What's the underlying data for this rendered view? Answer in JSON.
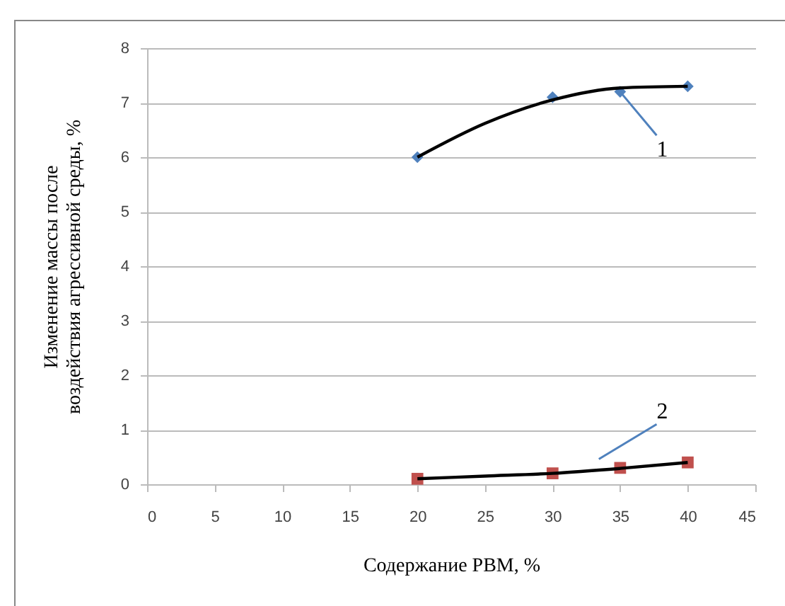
{
  "chart_data": {
    "type": "scatter",
    "xlabel": "Содержание PBM, %",
    "ylabel": "Изменение массы после воздействия агрессивной среды, %",
    "xlim": [
      0,
      45
    ],
    "xticks": [
      0,
      5,
      10,
      15,
      20,
      25,
      30,
      35,
      40,
      45
    ],
    "ylim": [
      0,
      8
    ],
    "yticks": [
      0,
      1,
      2,
      3,
      4,
      5,
      6,
      7,
      8
    ],
    "grid": "y",
    "series": [
      {
        "marker": "diamond",
        "color": "#4f81bd",
        "x": [
          20,
          30,
          35,
          40
        ],
        "values": [
          6.0,
          7.1,
          7.2,
          7.3
        ]
      },
      {
        "marker": "square",
        "color": "#c0504d",
        "x": [
          20,
          30,
          35,
          40
        ],
        "values": [
          0.1,
          0.2,
          0.3,
          0.4
        ]
      },
      {
        "type": "line",
        "color": "#000000",
        "x": [
          20,
          25,
          30,
          35,
          40
        ],
        "values": [
          6.0,
          6.62,
          7.05,
          7.27,
          7.3
        ]
      },
      {
        "type": "line",
        "color": "#000000",
        "x": [
          20,
          25,
          30,
          35,
          40
        ],
        "values": [
          0.1,
          0.15,
          0.2,
          0.29,
          0.4
        ]
      }
    ],
    "annotations": [
      "1",
      "2"
    ]
  }
}
